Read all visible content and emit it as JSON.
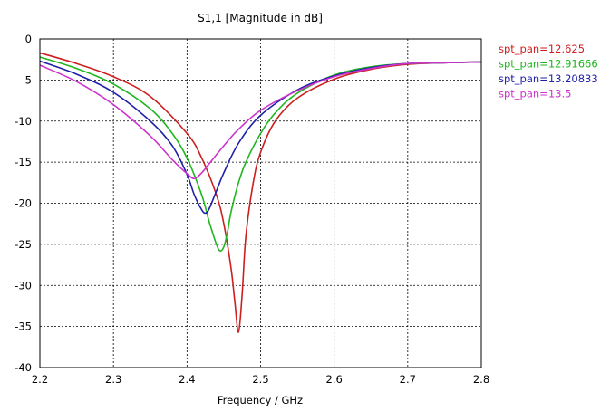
{
  "chart_data": {
    "type": "line",
    "title": "S1,1 [Magnitude in dB]",
    "xlabel": "Frequency / GHz",
    "ylabel": "",
    "xlim": [
      2.2,
      2.8
    ],
    "ylim": [
      -40,
      0
    ],
    "x_ticks": [
      "2.2",
      "2.3",
      "2.4",
      "2.5",
      "2.6",
      "2.7",
      "2.8"
    ],
    "y_ticks": [
      "0",
      "-5",
      "-10",
      "-15",
      "-20",
      "-25",
      "-30",
      "-35",
      "-40"
    ],
    "grid": true,
    "legend_position": "right",
    "series": [
      {
        "name": "spt_pan=12.625",
        "color": "#cc1f1f",
        "x": [
          2.2,
          2.25,
          2.3,
          2.35,
          2.4,
          2.42,
          2.44,
          2.45,
          2.46,
          2.465,
          2.47,
          2.475,
          2.48,
          2.49,
          2.5,
          2.52,
          2.55,
          2.6,
          2.65,
          2.7,
          2.75,
          2.8
        ],
        "y": [
          -1.7,
          -3.0,
          -4.6,
          -7.0,
          -11.5,
          -14.5,
          -19.0,
          -22.5,
          -28.0,
          -32.0,
          -35.7,
          -31.0,
          -24.0,
          -17.5,
          -13.8,
          -10.0,
          -7.2,
          -4.9,
          -3.7,
          -3.1,
          -2.9,
          -2.8
        ]
      },
      {
        "name": "spt_pan=12.91666",
        "color": "#1fb61f",
        "x": [
          2.2,
          2.25,
          2.3,
          2.35,
          2.38,
          2.4,
          2.42,
          2.43,
          2.44,
          2.445,
          2.45,
          2.455,
          2.46,
          2.47,
          2.48,
          2.5,
          2.52,
          2.55,
          2.6,
          2.65,
          2.7,
          2.75,
          2.8
        ],
        "y": [
          -2.2,
          -3.6,
          -5.5,
          -8.5,
          -11.5,
          -14.5,
          -19.0,
          -22.2,
          -25.0,
          -25.8,
          -25.3,
          -23.5,
          -21.0,
          -17.5,
          -15.0,
          -11.5,
          -9.0,
          -6.6,
          -4.4,
          -3.4,
          -3.0,
          -2.9,
          -2.8
        ]
      },
      {
        "name": "spt_pan=13.20833",
        "color": "#1f1fa8",
        "x": [
          2.2,
          2.25,
          2.3,
          2.35,
          2.38,
          2.4,
          2.41,
          2.42,
          2.425,
          2.43,
          2.44,
          2.45,
          2.47,
          2.5,
          2.55,
          2.6,
          2.65,
          2.7,
          2.75,
          2.8
        ],
        "y": [
          -2.7,
          -4.3,
          -6.5,
          -10.0,
          -13.0,
          -16.5,
          -19.0,
          -20.8,
          -21.2,
          -20.7,
          -18.5,
          -16.3,
          -12.7,
          -9.3,
          -6.2,
          -4.5,
          -3.5,
          -3.0,
          -2.9,
          -2.8
        ]
      },
      {
        "name": "spt_pan=13.5",
        "color": "#cc33cc",
        "x": [
          2.2,
          2.25,
          2.3,
          2.35,
          2.38,
          2.4,
          2.41,
          2.42,
          2.43,
          2.45,
          2.47,
          2.5,
          2.55,
          2.6,
          2.65,
          2.7,
          2.75,
          2.8
        ],
        "y": [
          -3.2,
          -5.2,
          -8.0,
          -11.8,
          -14.7,
          -16.4,
          -17.0,
          -16.3,
          -15.2,
          -13.0,
          -11.0,
          -8.7,
          -6.3,
          -4.6,
          -3.6,
          -3.0,
          -2.9,
          -2.8
        ]
      }
    ]
  }
}
